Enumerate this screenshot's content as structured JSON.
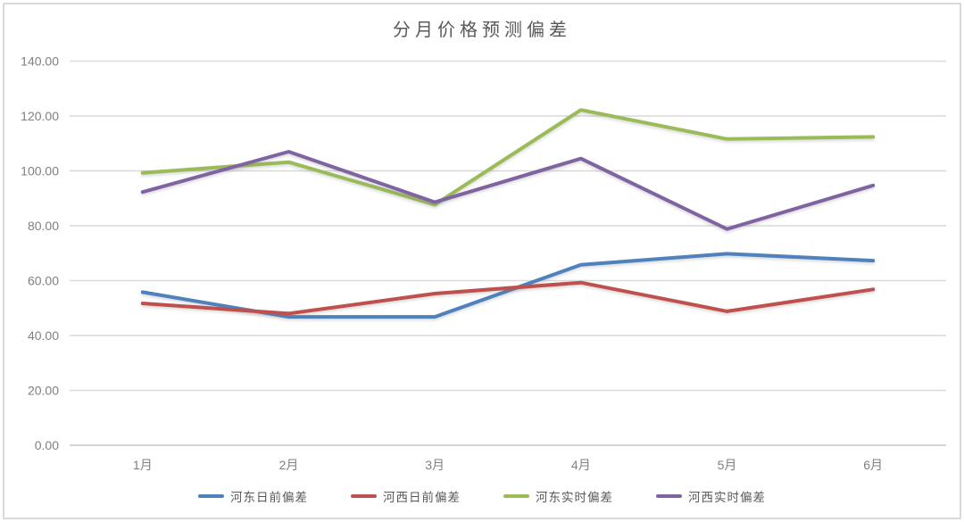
{
  "title": "分月价格预测偏差",
  "chart_data": {
    "type": "line",
    "title": "分月价格预测偏差",
    "categories": [
      "1月",
      "2月",
      "3月",
      "4月",
      "5月",
      "6月"
    ],
    "series": [
      {
        "name": "河东日前偏差",
        "color": "#4F81BD",
        "values": [
          55.8,
          46.8,
          46.8,
          65.8,
          69.8,
          67.3
        ]
      },
      {
        "name": "河西日前偏差",
        "color": "#C0504D",
        "values": [
          51.7,
          48.0,
          55.3,
          59.3,
          48.8,
          56.8
        ]
      },
      {
        "name": "河东实时偏差",
        "color": "#9BBB59",
        "values": [
          99.3,
          103.2,
          87.7,
          122.2,
          111.6,
          112.4
        ]
      },
      {
        "name": "河西实时偏差",
        "color": "#8064A2",
        "values": [
          92.3,
          107.0,
          88.6,
          104.5,
          78.8,
          94.7
        ]
      }
    ],
    "ylim": [
      0,
      140
    ],
    "y_ticks": [
      "0.00",
      "20.00",
      "40.00",
      "60.00",
      "80.00",
      "100.00",
      "120.00",
      "140.00"
    ],
    "grid": "horizontal",
    "legend_position": "bottom"
  },
  "colors": {
    "background": "#FFFFFF",
    "frame_border": "#D9D9D9",
    "gridline": "#D9D9D9",
    "axis_line": "#C6C6C6",
    "tick_text": "#808080",
    "title_text": "#595959",
    "legend_text": "#595959"
  }
}
